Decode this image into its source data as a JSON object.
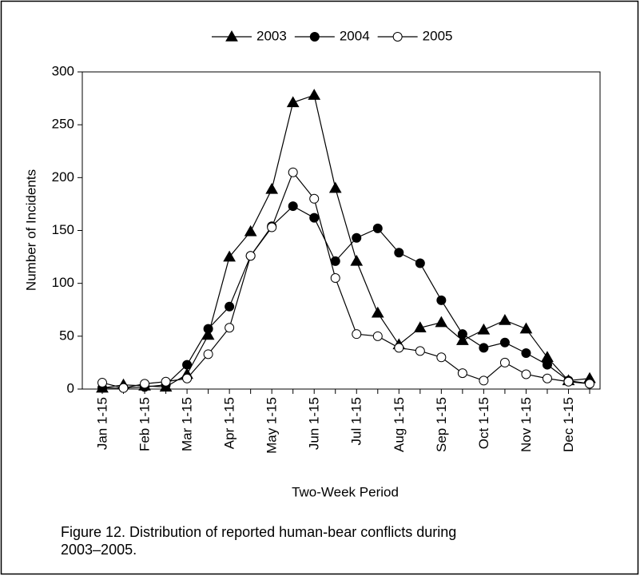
{
  "chart_data": {
    "type": "line",
    "caption": "Figure 12. Distribution of reported human-bear conflicts during 2003–2005.",
    "xlabel": "Two-Week Period",
    "ylabel": "Number of Incidents",
    "categories": [
      "Jan 1-15",
      null,
      "Feb 1-15",
      null,
      "Mar 1-15",
      null,
      "Apr 1-15",
      null,
      "May 1-15",
      null,
      "Jun 1-15",
      null,
      "Jul 1-15",
      null,
      "Aug 1-15",
      null,
      "Sep 1-15",
      null,
      "Oct 1-15",
      null,
      "Nov 1-15",
      null,
      "Dec 1-15",
      null
    ],
    "series": [
      {
        "name": "2003",
        "color": "#000000",
        "marker": "triangle",
        "marker_fill": "#000000",
        "values": [
          1,
          4,
          3,
          2,
          14,
          51,
          125,
          149,
          189,
          271,
          278,
          190,
          121,
          72,
          42,
          58,
          63,
          46,
          56,
          65,
          57,
          30,
          8,
          10
        ]
      },
      {
        "name": "2004",
        "color": "#000000",
        "marker": "circle",
        "marker_fill": "#000000",
        "values": [
          1,
          1,
          2,
          4,
          23,
          57,
          78,
          126,
          154,
          173,
          162,
          121,
          143,
          152,
          129,
          119,
          84,
          52,
          39,
          44,
          34,
          23,
          8,
          5
        ]
      },
      {
        "name": "2005",
        "color": "#000000",
        "marker": "circle",
        "marker_fill": "#ffffff",
        "values": [
          6,
          1,
          5,
          7,
          10,
          33,
          58,
          126,
          153,
          205,
          180,
          105,
          52,
          50,
          39,
          36,
          30,
          15,
          8,
          25,
          14,
          10,
          7,
          5
        ]
      }
    ],
    "ylim": [
      0,
      300
    ],
    "yticks": [
      0,
      50,
      100,
      150,
      200,
      250,
      300
    ],
    "grid": false,
    "legend": "top"
  }
}
